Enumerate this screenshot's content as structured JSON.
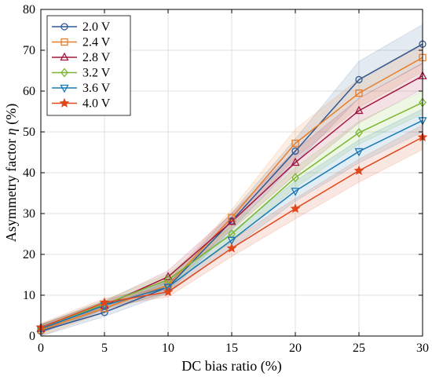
{
  "chart_data": {
    "type": "line",
    "title": "",
    "xlabel": "DC bias ratio (%)",
    "ylabel_main": "Asymmetry factor ",
    "ylabel_symbol": "η",
    "ylabel_unit": " (%)",
    "x": [
      0,
      5,
      10,
      15,
      20,
      25,
      30
    ],
    "xlim": [
      0,
      30
    ],
    "ylim": [
      0,
      80
    ],
    "xticks": [
      0,
      5,
      10,
      15,
      20,
      25,
      30
    ],
    "yticks": [
      0,
      10,
      20,
      30,
      40,
      50,
      60,
      70,
      80
    ],
    "grid": true,
    "legend_position": "top-left",
    "series": [
      {
        "name": "2.0 V",
        "color": "#2e5a96",
        "marker": "circle",
        "values": [
          1.2,
          5.8,
          12.0,
          28.2,
          45.3,
          62.8,
          71.5
        ],
        "band": [
          1.5,
          1.0,
          1.5,
          2.0,
          3.0,
          4.5,
          4.8
        ]
      },
      {
        "name": "2.4 V",
        "color": "#e87d29",
        "marker": "square",
        "values": [
          1.5,
          6.8,
          12.5,
          29.0,
          47.2,
          59.5,
          68.2
        ],
        "band": [
          1.5,
          1.0,
          1.5,
          2.0,
          3.5,
          3.5,
          3.5
        ]
      },
      {
        "name": "2.8 V",
        "color": "#a3173c",
        "marker": "triangle-up",
        "values": [
          1.8,
          7.5,
          14.5,
          28.0,
          42.5,
          55.2,
          63.7
        ],
        "band": [
          1.0,
          1.0,
          1.5,
          2.0,
          3.0,
          3.0,
          3.2
        ]
      },
      {
        "name": "3.2 V",
        "color": "#7ab631",
        "marker": "diamond",
        "values": [
          1.8,
          7.8,
          13.8,
          25.0,
          38.8,
          49.8,
          57.2
        ],
        "band": [
          1.0,
          1.0,
          1.5,
          2.0,
          2.5,
          2.8,
          2.8
        ]
      },
      {
        "name": "3.6 V",
        "color": "#1a78b4",
        "marker": "triangle-down",
        "values": [
          1.8,
          7.5,
          12.0,
          23.5,
          35.5,
          45.2,
          52.8
        ],
        "band": [
          1.0,
          1.0,
          1.5,
          2.0,
          2.5,
          2.8,
          2.8
        ]
      },
      {
        "name": "4.0 V",
        "color": "#e0471b",
        "marker": "star",
        "values": [
          2.1,
          8.2,
          10.8,
          21.5,
          31.2,
          40.5,
          48.7
        ],
        "band": [
          1.0,
          1.0,
          1.2,
          2.0,
          2.5,
          2.8,
          3.0
        ]
      }
    ]
  }
}
